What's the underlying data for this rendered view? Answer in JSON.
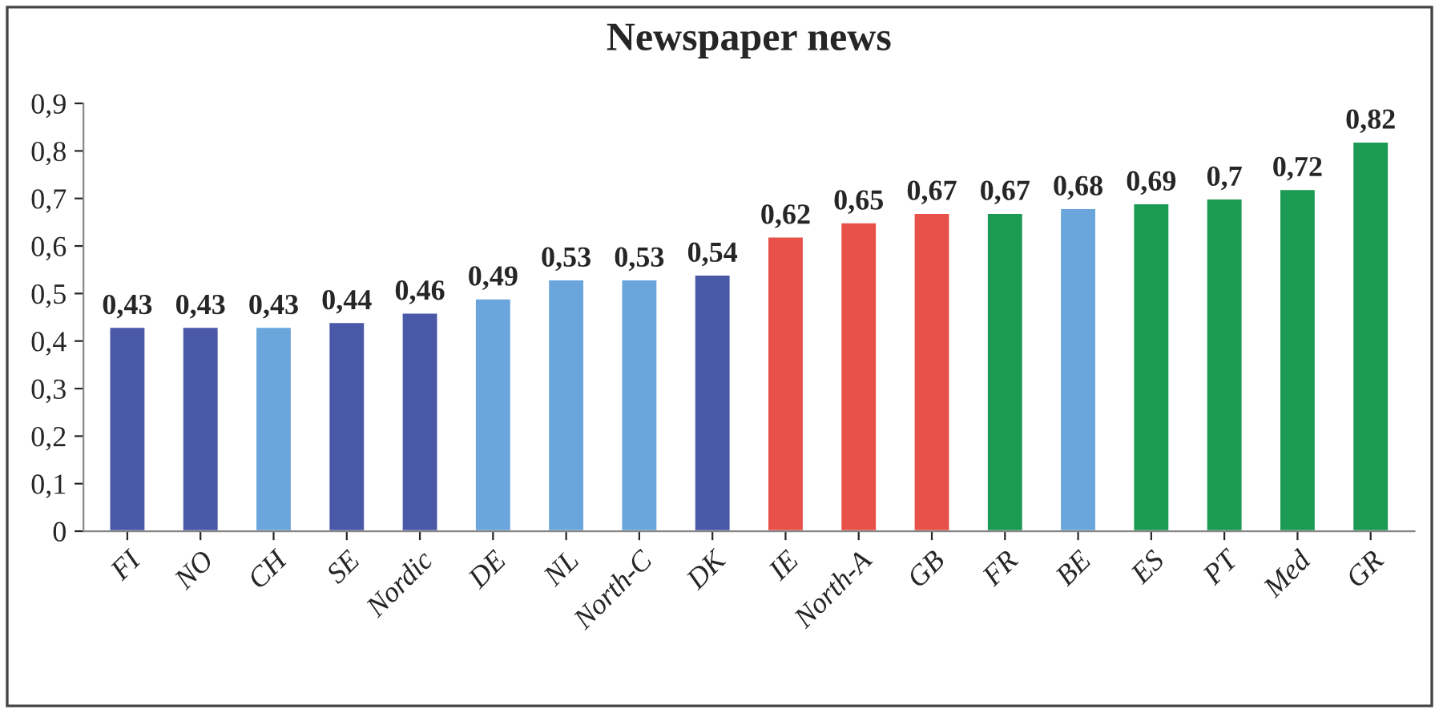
{
  "chart_data": {
    "type": "bar",
    "title": "Newspaper news",
    "categories": [
      "FI",
      "NO",
      "CH",
      "SE",
      "Nordic",
      "DE",
      "NL",
      "North-C",
      "DK",
      "IE",
      "North-A",
      "GB",
      "FR",
      "BE",
      "ES",
      "PT",
      "Med",
      "GR"
    ],
    "values": [
      0.43,
      0.43,
      0.43,
      0.44,
      0.46,
      0.49,
      0.53,
      0.53,
      0.54,
      0.62,
      0.65,
      0.67,
      0.67,
      0.68,
      0.69,
      0.7,
      0.72,
      0.82
    ],
    "value_labels": [
      "0,43",
      "0,43",
      "0,43",
      "0,44",
      "0,46",
      "0,49",
      "0,53",
      "0,53",
      "0,54",
      "0,62",
      "0,65",
      "0,67",
      "0,67",
      "0,68",
      "0,69",
      "0,7",
      "0,72",
      "0,82"
    ],
    "colors": [
      "#4a58a8",
      "#4a58a8",
      "#6aa6dc",
      "#4a58a8",
      "#4a58a8",
      "#6aa6dc",
      "#6aa6dc",
      "#6aa6dc",
      "#4a58a8",
      "#e8504a",
      "#e8504a",
      "#e8504a",
      "#1a9a52",
      "#6aa6dc",
      "#1a9a52",
      "#1a9a52",
      "#1a9a52",
      "#1a9a52"
    ],
    "ylim": [
      0,
      0.9
    ],
    "yticks": [
      {
        "value": 0,
        "label": "0"
      },
      {
        "value": 0.1,
        "label": "0,1"
      },
      {
        "value": 0.2,
        "label": "0,2"
      },
      {
        "value": 0.3,
        "label": "0,3"
      },
      {
        "value": 0.4,
        "label": "0,4"
      },
      {
        "value": 0.5,
        "label": "0,5"
      },
      {
        "value": 0.6,
        "label": "0,6"
      },
      {
        "value": 0.7,
        "label": "0,7"
      },
      {
        "value": 0.8,
        "label": "0,8"
      },
      {
        "value": 0.9,
        "label": "0,9"
      }
    ],
    "grid": false,
    "legend": false
  }
}
